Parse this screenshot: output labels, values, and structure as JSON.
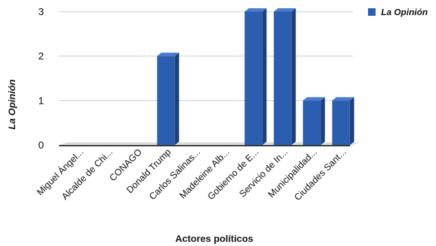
{
  "chart_data": {
    "type": "bar",
    "categories": [
      "Miguel Ángel...",
      "Alcalde de Chi...",
      "CONAGO",
      "Donald Trump",
      "Carlos Salinas...",
      "Madeleine Alb...",
      "Gobierno de E...",
      "Servicio de In...",
      "Municipalidad...",
      "Ciudades Sant..."
    ],
    "series": [
      {
        "name": "La Opinión",
        "values": [
          0,
          0,
          0,
          2,
          0,
          0,
          3,
          3,
          1,
          1
        ],
        "color": "#2b5eae"
      }
    ],
    "xlabel": "Actores políticos",
    "ylabel": "La Opinión",
    "ylim": [
      0,
      3
    ],
    "yticks": [
      "0",
      "1",
      "2",
      "3"
    ],
    "grid": true,
    "legend": "top-right",
    "style": "3d-column"
  }
}
